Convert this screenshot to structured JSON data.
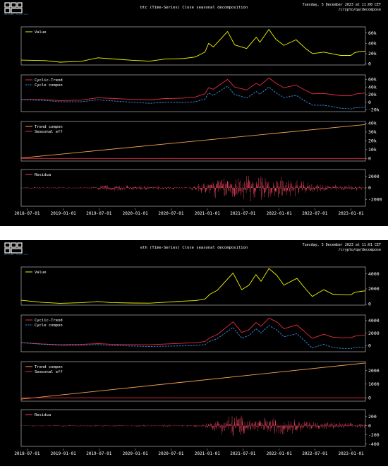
{
  "colors": {
    "value": "#f5f500",
    "cyclic_trend": "#e82c43",
    "cycle": "#3b8fe8",
    "trend": "#f2a24c",
    "seasonal": "#e82c43",
    "residual": "#e8455e",
    "frame": "#cccccc",
    "text": "#ffffff",
    "background": "#000000"
  },
  "header": {
    "logo_icon": "openbb-logo-icon",
    "logo_text": "OpenBB Terminal"
  },
  "panels": [
    {
      "title": "btc (Time-Series) Close seasonal decomposition",
      "datetime": "Tuesday, 5 December 2023 at 11:00 CET",
      "path": "/crypto/qa/decompose"
    },
    {
      "title": "eth (Time-Series) Close seasonal decomposition",
      "datetime": "Tuesday, 5 December 2023 at 11:01 CET",
      "path": "/crypto/qa/decompose"
    }
  ],
  "chart_data": [
    {
      "type": "line",
      "asset": "btc",
      "x_ticks": [
        "2018-07-01",
        "2019-01-01",
        "2019-07-01",
        "2020-01-01",
        "2020-07-01",
        "2021-01-01",
        "2021-07-01",
        "2022-01-01",
        "2022-07-01",
        "2023-01-01"
      ],
      "x_range": [
        "2018-06-01",
        "2023-03-15"
      ],
      "subplots": [
        {
          "legend": [
            "Value"
          ],
          "yticks": [
            "60k",
            "40k",
            "20k",
            "0"
          ],
          "ytick_values": [
            60000,
            40000,
            20000,
            0
          ],
          "ylim": [
            -2000,
            72000
          ],
          "series": [
            {
              "name": "Value",
              "color": "value",
              "x": [
                "2018-06-01",
                "2018-10-01",
                "2018-12-15",
                "2019-04-01",
                "2019-06-26",
                "2019-09-01",
                "2019-12-15",
                "2020-03-15",
                "2020-06-01",
                "2020-09-01",
                "2020-11-01",
                "2020-12-20",
                "2021-01-08",
                "2021-02-01",
                "2021-04-14",
                "2021-05-20",
                "2021-07-20",
                "2021-09-07",
                "2021-09-25",
                "2021-11-10",
                "2021-12-15",
                "2022-01-25",
                "2022-03-28",
                "2022-05-15",
                "2022-06-20",
                "2022-08-15",
                "2022-09-30",
                "2022-11-10",
                "2022-12-31",
                "2023-01-20",
                "2023-02-15",
                "2023-03-15"
              ],
              "y": [
                7500,
                6500,
                3500,
                5000,
                12000,
                10000,
                7200,
                5500,
                9500,
                10500,
                13500,
                23000,
                40000,
                33000,
                63000,
                37000,
                30000,
                52000,
                42000,
                67000,
                48000,
                36000,
                47000,
                30000,
                20000,
                23000,
                19500,
                16500,
                16500,
                22000,
                24000,
                25000
              ]
            }
          ]
        },
        {
          "legend": [
            "Cyclic-Trend",
            "Cycle compon"
          ],
          "yticks": [
            "60k",
            "40k",
            "20k",
            "0",
            "-20k"
          ],
          "ytick_values": [
            60000,
            40000,
            20000,
            0,
            -20000
          ],
          "ylim": [
            -25000,
            72000
          ],
          "series": [
            {
              "name": "Cyclic-Trend",
              "color": "cyclic_trend",
              "x": [
                "2018-06-01",
                "2018-10-01",
                "2018-12-15",
                "2019-04-01",
                "2019-06-26",
                "2019-09-01",
                "2019-12-15",
                "2020-03-15",
                "2020-06-01",
                "2020-09-01",
                "2020-11-01",
                "2020-12-20",
                "2021-01-08",
                "2021-02-01",
                "2021-04-14",
                "2021-05-20",
                "2021-07-20",
                "2021-09-07",
                "2021-09-25",
                "2021-11-10",
                "2021-12-15",
                "2022-01-25",
                "2022-03-28",
                "2022-05-15",
                "2022-06-20",
                "2022-08-15",
                "2022-09-30",
                "2022-11-10",
                "2022-12-31",
                "2023-01-20",
                "2023-02-15",
                "2023-03-15"
              ],
              "y": [
                7000,
                6500,
                4000,
                5200,
                11500,
                10000,
                7300,
                6000,
                9500,
                10500,
                13500,
                22000,
                38000,
                34000,
                60000,
                40000,
                32000,
                50000,
                44000,
                64000,
                50000,
                38000,
                45000,
                31000,
                22000,
                23000,
                20000,
                17000,
                17000,
                21000,
                23000,
                24000
              ]
            },
            {
              "name": "Cycle compon",
              "color": "cycle",
              "dashed": true,
              "x": [
                "2018-06-01",
                "2018-10-01",
                "2018-12-15",
                "2019-04-01",
                "2019-06-26",
                "2019-09-01",
                "2019-12-15",
                "2020-03-15",
                "2020-06-01",
                "2020-09-01",
                "2020-11-01",
                "2020-12-20",
                "2021-01-08",
                "2021-02-01",
                "2021-04-14",
                "2021-05-20",
                "2021-07-20",
                "2021-09-07",
                "2021-09-25",
                "2021-11-10",
                "2021-12-15",
                "2022-01-25",
                "2022-03-28",
                "2022-05-15",
                "2022-06-20",
                "2022-08-15",
                "2022-09-30",
                "2022-11-10",
                "2022-12-31",
                "2023-01-20",
                "2023-02-15",
                "2023-03-15"
              ],
              "y": [
                6500,
                4500,
                1000,
                1000,
                6000,
                3500,
                0,
                -3000,
                -500,
                -1000,
                1000,
                8000,
                24000,
                18000,
                42000,
                20000,
                11000,
                28000,
                21000,
                40000,
                25000,
                12000,
                18000,
                2000,
                -8000,
                -8000,
                -12000,
                -16000,
                -18000,
                -15000,
                -14000,
                -14000
              ]
            }
          ]
        },
        {
          "legend": [
            "Trend compon",
            "Seasonal eff"
          ],
          "yticks": [
            "40k",
            "30k",
            "20k",
            "10k",
            "0"
          ],
          "ytick_values": [
            40000,
            30000,
            20000,
            10000,
            0
          ],
          "ylim": [
            -3000,
            42000
          ],
          "series": [
            {
              "name": "Trend compon",
              "color": "trend",
              "x": [
                "2018-06-01",
                "2023-03-15"
              ],
              "y": [
                500,
                38500
              ]
            },
            {
              "name": "Seasonal eff",
              "color": "seasonal",
              "x": [
                "2018-06-01",
                "2023-03-15"
              ],
              "y": [
                0,
                0
              ]
            }
          ]
        },
        {
          "legend": [
            "Residua"
          ],
          "yticks": [
            "2000",
            "0",
            "-2000"
          ],
          "ytick_values": [
            2000,
            0,
            -2000
          ],
          "ylim": [
            -3200,
            3200
          ],
          "series": [
            {
              "name": "Residua",
              "color": "residual",
              "noise": true,
              "x": [
                "2018-06-01",
                "2019-06-01",
                "2019-08-01",
                "2020-10-01",
                "2021-01-01",
                "2021-06-01",
                "2022-01-01",
                "2022-07-01",
                "2023-03-15"
              ],
              "y": [
                150,
                200,
                700,
                200,
                1800,
                2600,
                2300,
                800,
                450
              ]
            }
          ]
        }
      ]
    },
    {
      "type": "line",
      "asset": "eth",
      "x_ticks": [
        "2018-07-01",
        "2019-01-01",
        "2019-07-01",
        "2020-01-01",
        "2020-07-01",
        "2021-01-01",
        "2021-07-01",
        "2022-01-01",
        "2022-07-01",
        "2023-01-01"
      ],
      "x_range": [
        "2018-06-01",
        "2023-03-15"
      ],
      "subplots": [
        {
          "legend": [
            "Value"
          ],
          "yticks": [
            "4000",
            "2000",
            "0"
          ],
          "ytick_values": [
            4000,
            2000,
            0
          ],
          "ylim": [
            -150,
            4900
          ],
          "series": [
            {
              "name": "Value",
              "color": "value",
              "x": [
                "2018-06-01",
                "2018-09-15",
                "2018-12-15",
                "2019-04-01",
                "2019-06-26",
                "2019-09-01",
                "2019-12-15",
                "2020-03-15",
                "2020-06-01",
                "2020-09-01",
                "2020-11-01",
                "2020-12-20",
                "2021-01-15",
                "2021-02-20",
                "2021-05-12",
                "2021-06-25",
                "2021-08-01",
                "2021-09-05",
                "2021-10-01",
                "2021-11-10",
                "2021-12-20",
                "2022-01-25",
                "2022-04-01",
                "2022-05-15",
                "2022-06-18",
                "2022-08-15",
                "2022-09-30",
                "2022-11-10",
                "2022-12-31",
                "2023-01-20",
                "2023-02-15",
                "2023-03-15"
              ],
              "y": [
                500,
                220,
                90,
                170,
                320,
                180,
                130,
                110,
                230,
                380,
                450,
                650,
                1300,
                1800,
                4100,
                1900,
                2500,
                3900,
                3000,
                4700,
                3800,
                2500,
                3400,
                2000,
                1000,
                1900,
                1300,
                1250,
                1200,
                1550,
                1650,
                1750
              ]
            }
          ]
        },
        {
          "legend": [
            "Cyclic-Trend",
            "Cycle compon"
          ],
          "yticks": [
            "4000",
            "2000",
            "0"
          ],
          "ytick_values": [
            4000,
            2000,
            0
          ],
          "ylim": [
            -1000,
            4900
          ],
          "series": [
            {
              "name": "Cyclic-Trend",
              "color": "cyclic_trend",
              "x": [
                "2018-06-01",
                "2018-09-15",
                "2018-12-15",
                "2019-04-01",
                "2019-06-26",
                "2019-09-01",
                "2019-12-15",
                "2020-03-15",
                "2020-06-01",
                "2020-09-01",
                "2020-11-01",
                "2020-12-20",
                "2021-01-15",
                "2021-02-20",
                "2021-05-12",
                "2021-06-25",
                "2021-08-01",
                "2021-09-05",
                "2021-10-01",
                "2021-11-10",
                "2021-12-20",
                "2022-01-25",
                "2022-04-01",
                "2022-05-15",
                "2022-06-18",
                "2022-08-15",
                "2022-09-30",
                "2022-11-10",
                "2022-12-31",
                "2023-01-20",
                "2023-02-15",
                "2023-03-15"
              ],
              "y": [
                480,
                250,
                120,
                180,
                310,
                200,
                140,
                130,
                240,
                370,
                450,
                640,
                1250,
                1750,
                3800,
                2100,
                2550,
                3700,
                3100,
                4400,
                3800,
                2700,
                3300,
                2100,
                1150,
                1800,
                1350,
                1250,
                1250,
                1500,
                1600,
                1700
              ]
            },
            {
              "name": "Cycle compon",
              "color": "cycle",
              "dashed": true,
              "x": [
                "2018-06-01",
                "2018-09-15",
                "2018-12-15",
                "2019-04-01",
                "2019-06-26",
                "2019-09-01",
                "2019-12-15",
                "2020-03-15",
                "2020-06-01",
                "2020-09-01",
                "2020-11-01",
                "2020-12-20",
                "2021-01-15",
                "2021-02-20",
                "2021-05-12",
                "2021-06-25",
                "2021-08-01",
                "2021-09-05",
                "2021-10-01",
                "2021-11-10",
                "2021-12-20",
                "2022-01-25",
                "2022-04-01",
                "2022-05-15",
                "2022-06-18",
                "2022-08-15",
                "2022-09-30",
                "2022-11-10",
                "2022-12-31",
                "2023-01-20",
                "2023-02-15",
                "2023-03-15"
              ],
              "y": [
                450,
                200,
                50,
                50,
                150,
                0,
                -80,
                -150,
                -100,
                -50,
                0,
                150,
                700,
                1100,
                2900,
                1200,
                1600,
                2700,
                2000,
                3200,
                2500,
                1400,
                1900,
                600,
                -400,
                200,
                -300,
                -450,
                -500,
                -300,
                -250,
                -250
              ]
            }
          ]
        },
        {
          "legend": [
            "Trend compon",
            "Seasonal eff"
          ],
          "yticks": [
            "2000",
            "1000",
            "0"
          ],
          "ytick_values": [
            2000,
            1000,
            0
          ],
          "ylim": [
            -250,
            2650
          ],
          "series": [
            {
              "name": "Trend compon",
              "color": "trend",
              "x": [
                "2018-06-01",
                "2023-03-15"
              ],
              "y": [
                -100,
                2550
              ]
            },
            {
              "name": "Seasonal eff",
              "color": "seasonal",
              "x": [
                "2018-06-01",
                "2023-03-15"
              ],
              "y": [
                0,
                0
              ]
            }
          ]
        },
        {
          "legend": [
            "Residua"
          ],
          "yticks": [
            "200",
            "0",
            "-200",
            "-400"
          ],
          "ytick_values": [
            200,
            0,
            -200,
            -400
          ],
          "ylim": [
            -450,
            350
          ],
          "series": [
            {
              "name": "Residua",
              "color": "residual",
              "noise": true,
              "x": [
                "2018-06-01",
                "2019-06-01",
                "2020-01-01",
                "2020-12-01",
                "2021-02-01",
                "2021-05-15",
                "2021-08-01",
                "2022-01-01",
                "2022-07-01",
                "2023-03-15"
              ],
              "y": [
                15,
                20,
                20,
                30,
                120,
                320,
                200,
                220,
                110,
                50
              ]
            }
          ]
        }
      ]
    }
  ]
}
